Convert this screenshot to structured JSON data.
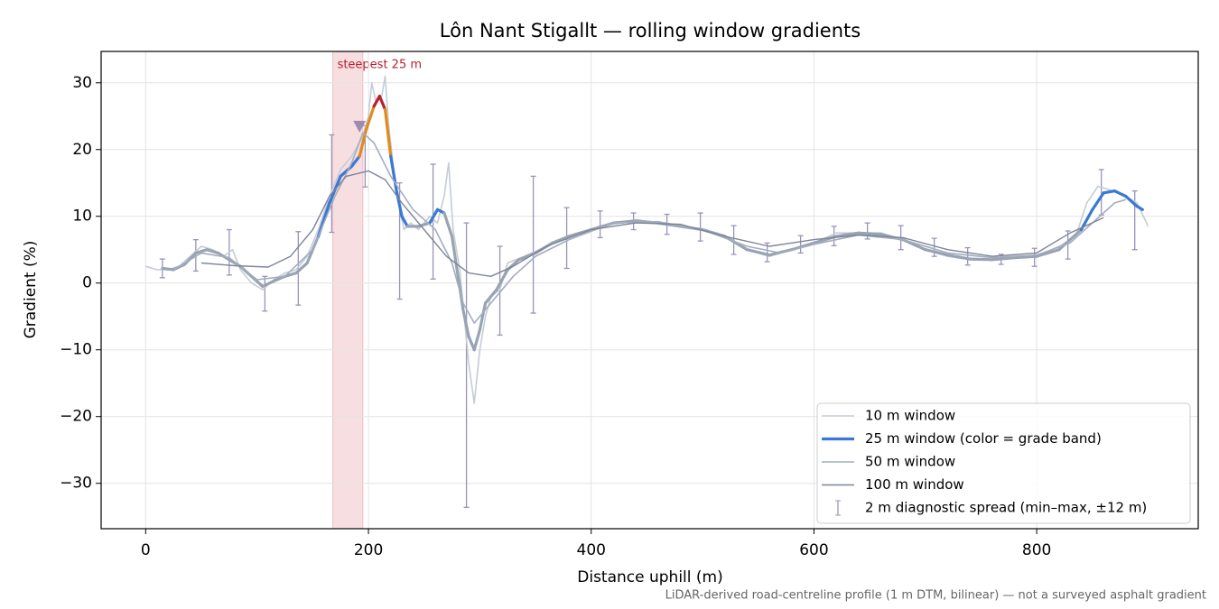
{
  "chart_data": {
    "type": "line",
    "title": "Lôn Nant Stigallt — rolling window gradients",
    "xlabel": "Distance uphill (m)",
    "ylabel": "Gradient (%)",
    "footnote": "LiDAR-derived road-centreline profile (1 m DTM, bilinear) — not a surveyed asphalt gradient",
    "xlim": [
      -40,
      945
    ],
    "ylim": [
      -36.8,
      34.7
    ],
    "xticks": [
      0,
      200,
      400,
      600,
      800
    ],
    "yticks": [
      {
        "value": -30,
        "label": "−30"
      },
      {
        "value": -20,
        "label": "−20"
      },
      {
        "value": -10,
        "label": "−10"
      },
      0,
      10,
      20,
      30
    ],
    "grid": true,
    "legend": "lower right",
    "span": {
      "x": [
        168,
        195
      ],
      "color": "#e8a0aa",
      "label": "steepest 25 m"
    },
    "marker": {
      "x": 192,
      "y": 23.5,
      "color": "#8c7fa8"
    },
    "series": [
      {
        "name": "10 m window",
        "color": "#c5ccd6",
        "x": [
          0,
          10,
          20,
          30,
          40,
          50,
          60,
          70,
          78,
          85,
          95,
          105,
          115,
          125,
          135,
          145,
          155,
          165,
          175,
          185,
          195,
          200,
          203,
          207,
          212,
          215,
          218,
          222,
          227,
          232,
          238,
          245,
          255,
          262,
          268,
          272,
          276,
          282,
          286,
          290,
          295,
          300,
          305,
          310,
          318,
          325,
          340,
          360,
          380,
          400,
          420,
          440,
          460,
          480,
          500,
          520,
          540,
          560,
          580,
          600,
          620,
          640,
          660,
          680,
          700,
          720,
          740,
          760,
          780,
          800,
          820,
          835,
          845,
          855,
          865,
          880,
          890,
          900
        ],
        "values": [
          2.5,
          2,
          2,
          2.5,
          4,
          5.5,
          5,
          4,
          5,
          2,
          0,
          -1,
          0.5,
          1.5,
          2,
          4,
          8,
          13,
          17,
          19,
          22,
          25,
          30,
          27,
          28,
          31,
          24,
          18,
          12,
          8,
          9,
          8,
          10,
          9,
          13,
          18,
          8,
          2,
          -5,
          -12,
          -18,
          -10,
          -5,
          -2,
          -1,
          3,
          4,
          5.5,
          7,
          8,
          9,
          9.5,
          9,
          8.5,
          8,
          7,
          5,
          4,
          5,
          6,
          7.5,
          7.5,
          7.5,
          6.5,
          5,
          4,
          3.5,
          3.5,
          4,
          4,
          5.5,
          7,
          12,
          14.5,
          14,
          13,
          12,
          8.5
        ]
      },
      {
        "name": "25 m window (color = grade band)",
        "color": "#3a78d4",
        "x": [
          15,
          25,
          35,
          45,
          55,
          65,
          75,
          85,
          95,
          105,
          115,
          125,
          135,
          145,
          155,
          165,
          175,
          185,
          192,
          198,
          205,
          210,
          215,
          220,
          225,
          230,
          235,
          245,
          255,
          262,
          268,
          275,
          285,
          290,
          295,
          300,
          305,
          315,
          325,
          335,
          350,
          365,
          380,
          400,
          420,
          440,
          460,
          480,
          500,
          520,
          540,
          560,
          580,
          600,
          620,
          640,
          660,
          680,
          700,
          720,
          740,
          760,
          780,
          800,
          820,
          840,
          850,
          860,
          870,
          880,
          890,
          895
        ],
        "values": [
          2.2,
          2,
          2.8,
          4.5,
          5,
          4.5,
          3.5,
          2.5,
          1,
          -0.5,
          0.3,
          1,
          1.5,
          3,
          7,
          12,
          16,
          17.5,
          19,
          23,
          26.5,
          28,
          26,
          19,
          14,
          10,
          8.5,
          8.5,
          9,
          11,
          10.5,
          7,
          -4,
          -8,
          -10,
          -7,
          -3,
          -1,
          2,
          3.5,
          4.5,
          6,
          7,
          8,
          9,
          9.3,
          9,
          8.5,
          8,
          7,
          5,
          4.2,
          5,
          6,
          7,
          7.5,
          7.3,
          6.5,
          5,
          4.2,
          3.6,
          3.5,
          3.8,
          4,
          5,
          8,
          11,
          13.5,
          13.8,
          13,
          11.5,
          11
        ],
        "colors": [
          "#98a3b3",
          "#98a3b3",
          "#98a3b3",
          "#98a3b3",
          "#98a3b3",
          "#98a3b3",
          "#98a3b3",
          "#98a3b3",
          "#98a3b3",
          "#98a3b3",
          "#98a3b3",
          "#98a3b3",
          "#98a3b3",
          "#98a3b3",
          "#3a78d4",
          "#3a78d4",
          "#3a78d4",
          "#3a78d4",
          "#e08a1e",
          "#e08a1e",
          "#b8202f",
          "#b8202f",
          "#e08a1e",
          "#3a78d4",
          "#3a78d4",
          "#3a78d4",
          "#98a3b3",
          "#98a3b3",
          "#3a78d4",
          "#3a78d4",
          "#98a3b3",
          "#98a3b3",
          "#98a3b3",
          "#98a3b3",
          "#98a3b3",
          "#98a3b3",
          "#98a3b3",
          "#98a3b3",
          "#98a3b3",
          "#98a3b3",
          "#98a3b3",
          "#98a3b3",
          "#98a3b3",
          "#98a3b3",
          "#98a3b3",
          "#98a3b3",
          "#98a3b3",
          "#98a3b3",
          "#98a3b3",
          "#98a3b3",
          "#98a3b3",
          "#98a3b3",
          "#98a3b3",
          "#98a3b3",
          "#98a3b3",
          "#98a3b3",
          "#98a3b3",
          "#98a3b3",
          "#98a3b3",
          "#98a3b3",
          "#98a3b3",
          "#98a3b3",
          "#98a3b3",
          "#98a3b3",
          "#98a3b3",
          "#3a78d4",
          "#3a78d4",
          "#3a78d4",
          "#3a78d4",
          "#3a78d4",
          "#3a78d4",
          "#3a78d4"
        ]
      },
      {
        "name": "50 m window",
        "color": "#a3adbd",
        "x": [
          25,
          50,
          75,
          100,
          125,
          150,
          170,
          185,
          195,
          205,
          220,
          240,
          260,
          275,
          285,
          295,
          310,
          330,
          350,
          380,
          420,
          460,
          500,
          540,
          570,
          600,
          640,
          680,
          720,
          760,
          800,
          830,
          850,
          870,
          880
        ],
        "values": [
          2,
          4.5,
          3.8,
          0.5,
          1,
          5,
          13,
          18,
          22.5,
          21,
          16,
          11,
          8,
          3,
          -3,
          -6,
          -3,
          1,
          4,
          6.5,
          9,
          9.2,
          8,
          5.5,
          4.5,
          5.8,
          7.2,
          6.5,
          4.5,
          3.8,
          4.2,
          6,
          9,
          12,
          12.5
        ]
      },
      {
        "name": "100 m window",
        "color": "#7d8596",
        "x": [
          50,
          80,
          110,
          130,
          150,
          165,
          180,
          200,
          215,
          230,
          250,
          270,
          290,
          310,
          330,
          360,
          400,
          440,
          480,
          520,
          560,
          600,
          640,
          680,
          720,
          760,
          800,
          830,
          860
        ],
        "values": [
          3,
          2.6,
          2.4,
          4,
          8,
          13,
          16,
          16.8,
          15.5,
          12,
          8,
          4,
          1.5,
          1,
          2.5,
          5.5,
          8,
          9,
          8.8,
          7,
          5.5,
          6.5,
          7.2,
          6.8,
          5,
          4,
          4.5,
          7.5,
          9.8
        ]
      }
    ],
    "errorbars": {
      "name": "2 m diagnostic spread (min–max, ±12 m)",
      "color": "#9a94b8",
      "x": [
        15,
        45,
        75,
        107,
        137,
        167,
        197,
        228,
        258,
        288,
        318,
        348,
        378,
        408,
        438,
        468,
        498,
        528,
        558,
        588,
        618,
        648,
        678,
        708,
        738,
        768,
        798,
        828,
        858,
        888
      ],
      "low": [
        0.8,
        1.8,
        1.2,
        -4.2,
        -3.3,
        7.6,
        14.4,
        -2.4,
        0.6,
        -33.6,
        -7.8,
        -4.5,
        2.2,
        6.8,
        8,
        7.3,
        6.3,
        4.3,
        3.2,
        4.5,
        5.6,
        6.6,
        5,
        4,
        2.7,
        2.8,
        2.5,
        3.6,
        10.2,
        5
      ],
      "high": [
        3.6,
        6.5,
        8,
        1,
        7.7,
        22.2,
        23.6,
        15,
        17.8,
        9,
        5.5,
        16,
        11.3,
        10.8,
        10.5,
        10.3,
        10.5,
        8.6,
        6,
        7.1,
        8.5,
        9,
        8.6,
        6.7,
        5.3,
        4.3,
        5.2,
        7.8,
        17,
        13.8
      ]
    }
  }
}
